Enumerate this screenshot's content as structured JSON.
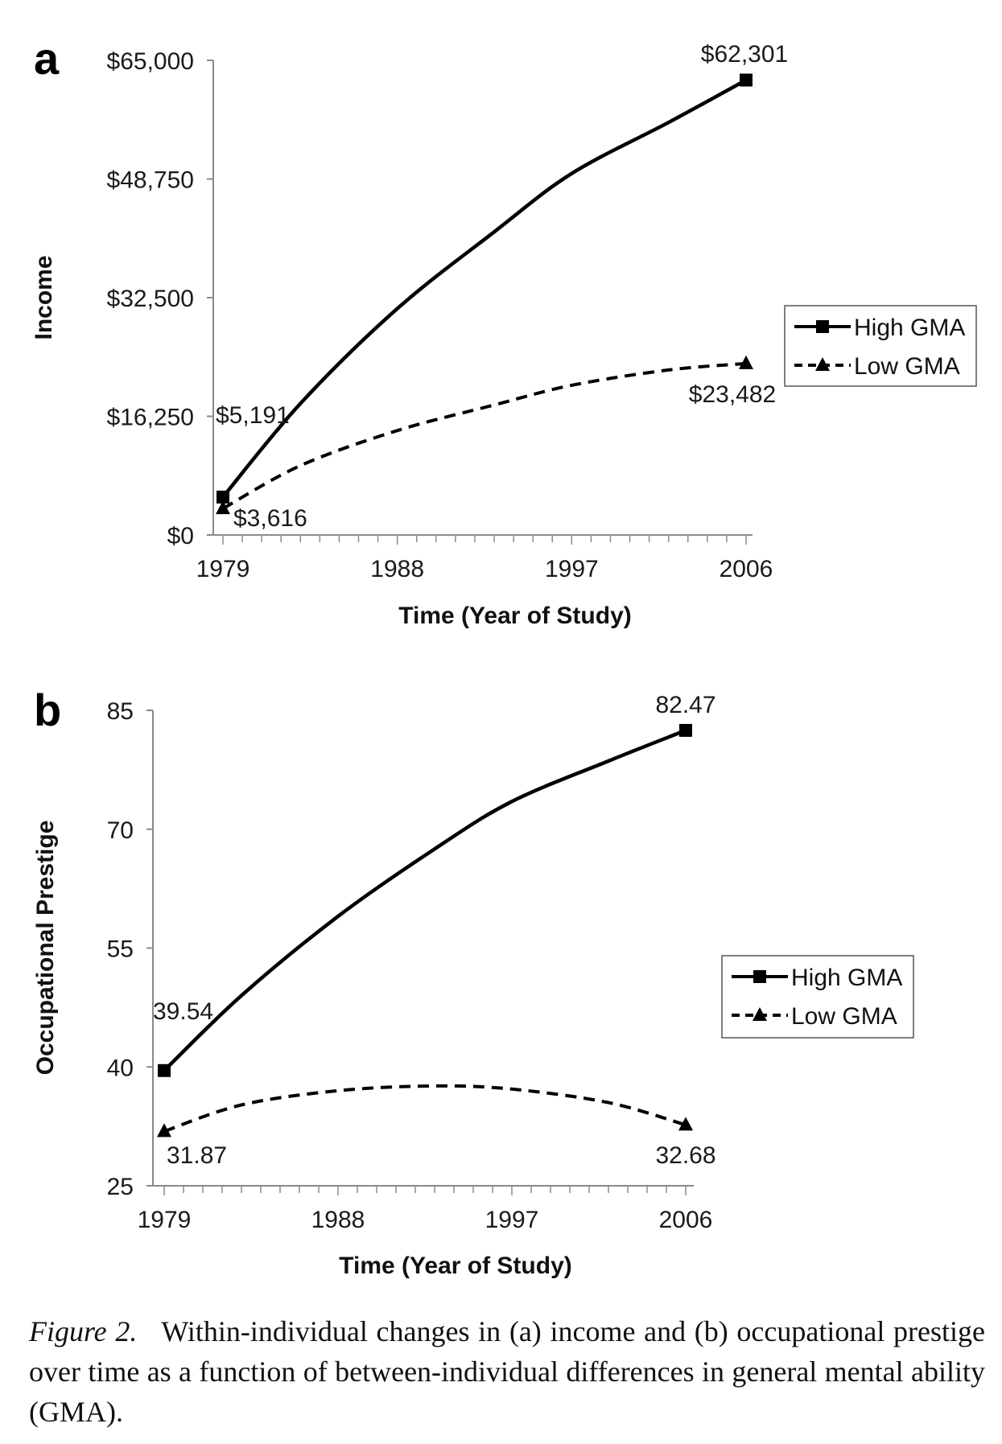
{
  "chart_data": [
    {
      "panel": "a",
      "type": "line",
      "ylabel": "Income",
      "xlabel": "Time (Year of Study)",
      "xlim": [
        1979,
        2006
      ],
      "ylim": [
        0,
        65000
      ],
      "x_ticks": [
        "1979",
        "1988",
        "1997",
        "2006"
      ],
      "y_ticks": [
        "$0",
        "$16,250",
        "$32,500",
        "$48,750",
        "$65,000"
      ],
      "legend_position": "right",
      "series": [
        {
          "name": "High GMA",
          "style": "solid",
          "marker": "square",
          "x": [
            1979,
            1983,
            1988,
            1993,
            1997,
            2002,
            2006
          ],
          "y": [
            5191,
            18000,
            31000,
            41500,
            49500,
            56500,
            62301
          ],
          "labels": [
            {
              "x": 1979,
              "text": "$5,191"
            },
            {
              "x": 2006,
              "text": "$62,301"
            }
          ]
        },
        {
          "name": "Low GMA",
          "style": "dashed",
          "marker": "triangle",
          "x": [
            1979,
            1983,
            1988,
            1993,
            1997,
            2002,
            2006
          ],
          "y": [
            3616,
            9500,
            14300,
            17800,
            20500,
            22600,
            23482
          ],
          "labels": [
            {
              "x": 1979,
              "text": "$3,616"
            },
            {
              "x": 2006,
              "text": "$23,482"
            }
          ]
        }
      ]
    },
    {
      "panel": "b",
      "type": "line",
      "ylabel": "Occupational Prestige",
      "xlabel": "Time (Year of Study)",
      "xlim": [
        1979,
        2006
      ],
      "ylim": [
        25,
        85
      ],
      "x_ticks": [
        "1979",
        "1988",
        "1997",
        "2006"
      ],
      "y_ticks": [
        "25",
        "40",
        "55",
        "70",
        "85"
      ],
      "legend_position": "right",
      "series": [
        {
          "name": "High GMA",
          "style": "solid",
          "marker": "square",
          "x": [
            1979,
            1983,
            1988,
            1993,
            1997,
            2002,
            2006
          ],
          "y": [
            39.54,
            49,
            59,
            67.5,
            73.5,
            78.6,
            82.47
          ],
          "labels": [
            {
              "x": 1979,
              "text": "39.54"
            },
            {
              "x": 2006,
              "text": "82.47"
            }
          ]
        },
        {
          "name": "Low GMA",
          "style": "dashed",
          "marker": "triangle",
          "x": [
            1979,
            1983,
            1988,
            1993,
            1997,
            2002,
            2006
          ],
          "y": [
            31.87,
            35.2,
            37.0,
            37.6,
            37.2,
            35.5,
            32.68
          ],
          "labels": [
            {
              "x": 1979,
              "text": "31.87"
            },
            {
              "x": 2006,
              "text": "32.68"
            }
          ]
        }
      ]
    }
  ],
  "caption": {
    "label": "Figure 2.",
    "text": "Within-individual changes in (a) income and (b) occupational prestige over time as a function of between-individual differences in general mental ability (GMA)."
  }
}
